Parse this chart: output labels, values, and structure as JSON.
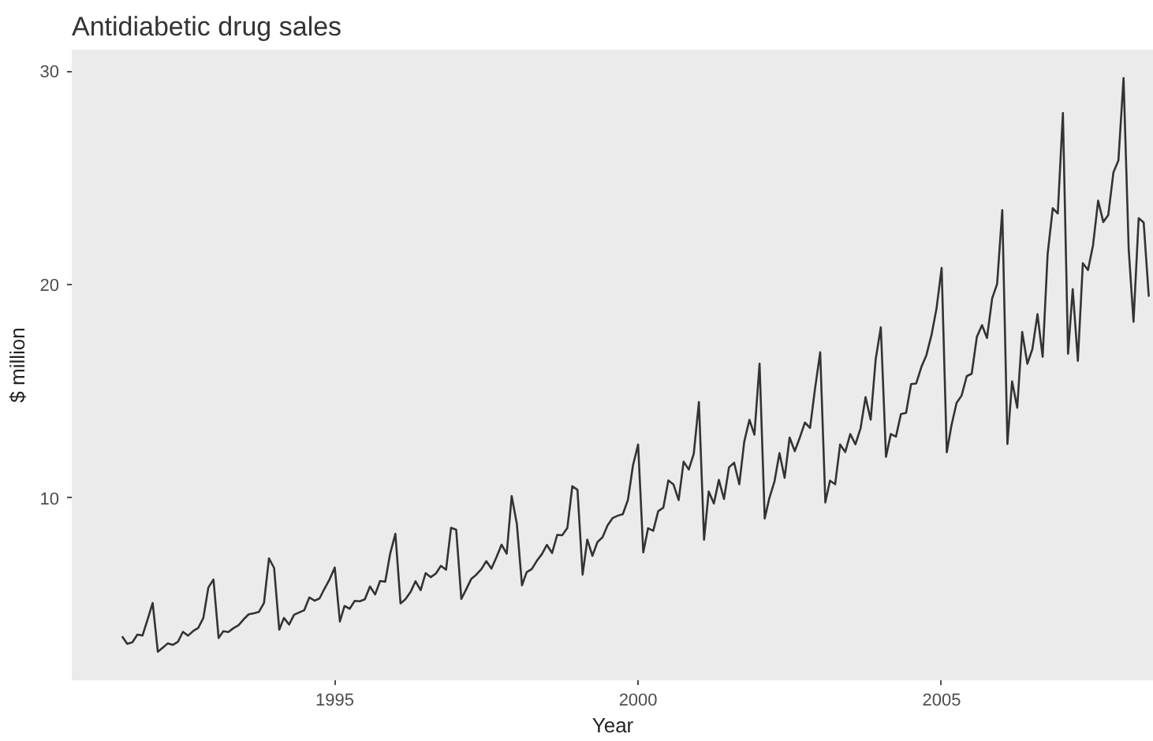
{
  "chart_data": {
    "type": "line",
    "title": "Antidiabetic drug sales",
    "xlabel": "Year",
    "ylabel": "$ million",
    "x": [
      "1991-07",
      "1991-08",
      "1991-09",
      "1991-10",
      "1991-11",
      "1991-12",
      "1992-01",
      "1992-02",
      "1992-03",
      "1992-04",
      "1992-05",
      "1992-06",
      "1992-07",
      "1992-08",
      "1992-09",
      "1992-10",
      "1992-11",
      "1992-12",
      "1993-01",
      "1993-02",
      "1993-03",
      "1993-04",
      "1993-05",
      "1993-06",
      "1993-07",
      "1993-08",
      "1993-09",
      "1993-10",
      "1993-11",
      "1993-12",
      "1994-01",
      "1994-02",
      "1994-03",
      "1994-04",
      "1994-05",
      "1994-06",
      "1994-07",
      "1994-08",
      "1994-09",
      "1994-10",
      "1994-11",
      "1994-12",
      "1995-01",
      "1995-02",
      "1995-03",
      "1995-04",
      "1995-05",
      "1995-06",
      "1995-07",
      "1995-08",
      "1995-09",
      "1995-10",
      "1995-11",
      "1995-12",
      "1996-01",
      "1996-02",
      "1996-03",
      "1996-04",
      "1996-05",
      "1996-06",
      "1996-07",
      "1996-08",
      "1996-09",
      "1996-10",
      "1996-11",
      "1996-12",
      "1997-01",
      "1997-02",
      "1997-03",
      "1997-04",
      "1997-05",
      "1997-06",
      "1997-07",
      "1997-08",
      "1997-09",
      "1997-10",
      "1997-11",
      "1997-12",
      "1998-01",
      "1998-02",
      "1998-03",
      "1998-04",
      "1998-05",
      "1998-06",
      "1998-07",
      "1998-08",
      "1998-09",
      "1998-10",
      "1998-11",
      "1998-12",
      "1999-01",
      "1999-02",
      "1999-03",
      "1999-04",
      "1999-05",
      "1999-06",
      "1999-07",
      "1999-08",
      "1999-09",
      "1999-10",
      "1999-11",
      "1999-12",
      "2000-01",
      "2000-02",
      "2000-03",
      "2000-04",
      "2000-05",
      "2000-06",
      "2000-07",
      "2000-08",
      "2000-09",
      "2000-10",
      "2000-11",
      "2000-12",
      "2001-01",
      "2001-02",
      "2001-03",
      "2001-04",
      "2001-05",
      "2001-06",
      "2001-07",
      "2001-08",
      "2001-09",
      "2001-10",
      "2001-11",
      "2001-12",
      "2002-01",
      "2002-02",
      "2002-03",
      "2002-04",
      "2002-05",
      "2002-06",
      "2002-07",
      "2002-08",
      "2002-09",
      "2002-10",
      "2002-11",
      "2002-12",
      "2003-01",
      "2003-02",
      "2003-03",
      "2003-04",
      "2003-05",
      "2003-06",
      "2003-07",
      "2003-08",
      "2003-09",
      "2003-10",
      "2003-11",
      "2003-12",
      "2004-01",
      "2004-02",
      "2004-03",
      "2004-04",
      "2004-05",
      "2004-06",
      "2004-07",
      "2004-08",
      "2004-09",
      "2004-10",
      "2004-11",
      "2004-12",
      "2005-01",
      "2005-02",
      "2005-03",
      "2005-04",
      "2005-05",
      "2005-06",
      "2005-07",
      "2005-08",
      "2005-09",
      "2005-10",
      "2005-11",
      "2005-12",
      "2006-01",
      "2006-02",
      "2006-03",
      "2006-04",
      "2006-05",
      "2006-06",
      "2006-07",
      "2006-08",
      "2006-09",
      "2006-10",
      "2006-11",
      "2006-12",
      "2007-01",
      "2007-02",
      "2007-03",
      "2007-04",
      "2007-05",
      "2007-06",
      "2007-07",
      "2007-08",
      "2007-09",
      "2007-10",
      "2007-11",
      "2007-12",
      "2008-01",
      "2008-02",
      "2008-03",
      "2008-04",
      "2008-05",
      "2008-06"
    ],
    "series": [
      {
        "color": "#333333",
        "values": [
          3.53,
          3.18,
          3.25,
          3.61,
          3.57,
          4.31,
          5.09,
          2.81,
          2.99,
          3.2,
          3.13,
          3.27,
          3.74,
          3.56,
          3.78,
          3.92,
          4.39,
          5.81,
          6.19,
          3.45,
          3.77,
          3.73,
          3.91,
          4.05,
          4.32,
          4.56,
          4.61,
          4.67,
          5.09,
          7.18,
          6.73,
          3.84,
          4.39,
          4.08,
          4.54,
          4.65,
          4.75,
          5.35,
          5.2,
          5.3,
          5.77,
          6.2,
          6.75,
          4.22,
          4.95,
          4.82,
          5.19,
          5.17,
          5.26,
          5.86,
          5.49,
          6.12,
          6.09,
          7.42,
          8.33,
          5.07,
          5.26,
          5.6,
          6.11,
          5.69,
          6.49,
          6.3,
          6.47,
          6.83,
          6.65,
          8.61,
          8.52,
          5.28,
          5.71,
          6.21,
          6.41,
          6.67,
          7.05,
          6.7,
          7.25,
          7.82,
          7.4,
          10.1,
          8.8,
          5.92,
          6.53,
          6.68,
          7.06,
          7.38,
          7.81,
          7.43,
          8.28,
          8.26,
          8.6,
          10.56,
          10.39,
          6.42,
          8.06,
          7.3,
          7.94,
          8.17,
          8.72,
          9.07,
          9.18,
          9.25,
          9.93,
          11.53,
          12.51,
          7.46,
          8.59,
          8.47,
          9.39,
          9.56,
          10.83,
          10.64,
          9.91,
          11.71,
          11.34,
          12.08,
          14.5,
          8.05,
          10.31,
          9.75,
          10.85,
          9.96,
          11.44,
          11.66,
          10.65,
          12.65,
          13.67,
          12.97,
          16.3,
          9.05,
          10.0,
          10.79,
          12.11,
          10.95,
          12.84,
          12.2,
          12.85,
          13.54,
          13.29,
          15.13,
          16.83,
          9.8,
          10.82,
          10.65,
          12.51,
          12.16,
          13.0,
          12.52,
          13.27,
          14.73,
          13.67,
          16.5,
          18.0,
          11.94,
          13.0,
          12.88,
          13.94,
          13.99,
          15.34,
          15.37,
          16.14,
          16.69,
          17.64,
          18.87,
          20.78,
          12.15,
          13.4,
          14.46,
          14.8,
          15.71,
          15.83,
          17.55,
          18.1,
          17.5,
          19.35,
          20.03,
          23.49,
          12.54,
          15.47,
          14.23,
          17.78,
          16.29,
          16.98,
          18.61,
          16.62,
          21.43,
          23.58,
          23.33,
          28.04,
          16.76,
          19.79,
          16.43,
          21.0,
          20.68,
          21.83,
          23.93,
          22.93,
          23.26,
          25.25,
          25.81,
          29.67,
          21.65,
          18.26,
          23.11,
          22.91,
          19.43
        ]
      }
    ],
    "xlim": [
      "1990-09",
      "2008-07"
    ],
    "xticks": [
      {
        "value": "1995-01",
        "label": "1995"
      },
      {
        "value": "2000-01",
        "label": "2000"
      },
      {
        "value": "2005-01",
        "label": "2005"
      }
    ],
    "ylim": [
      1.47,
      31.0
    ],
    "yticks": [
      10,
      20,
      30
    ],
    "grid": false
  }
}
